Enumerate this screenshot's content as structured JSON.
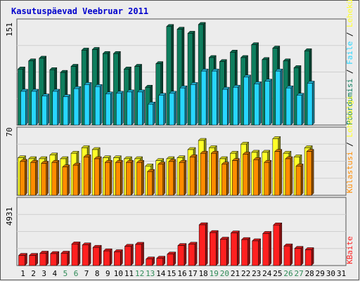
{
  "title": "Kasutuspäevad Veebruar 2011",
  "colors": {
    "background": "#ececec",
    "title": "#0000cc",
    "hits": "#0e7e5e",
    "files": "#28d6ff",
    "pages": "#ffff28",
    "visits": "#ff8c00",
    "kbytes": "#ff2020",
    "weekend_label": "#2e8b57",
    "weekday_label": "#000000"
  },
  "chart_data": [
    {
      "type": "bar",
      "panel": "top",
      "ymax_label": "151",
      "ylim": [
        0,
        151
      ],
      "right_label": {
        "a": "Pöördumisi",
        "sep1": " / ",
        "b": "Faile",
        "sep2": " / ",
        "c": "Lehekülgi"
      },
      "x": [
        1,
        2,
        3,
        4,
        5,
        6,
        7,
        8,
        9,
        10,
        11,
        12,
        13,
        14,
        15,
        16,
        17,
        18,
        19,
        20,
        21,
        22,
        23,
        24,
        25,
        26,
        27,
        28
      ],
      "series": [
        {
          "name": "Pöördumisi",
          "values": [
            83,
            95,
            99,
            82,
            78,
            87,
            111,
            112,
            106,
            106,
            83,
            87,
            56,
            91,
            146,
            142,
            136,
            149,
            100,
            94,
            108,
            100,
            119,
            97,
            114,
            95,
            85,
            110
          ]
        },
        {
          "name": "Faile",
          "values": [
            50,
            50,
            43,
            50,
            42,
            54,
            60,
            57,
            46,
            47,
            49,
            49,
            31,
            44,
            47,
            55,
            60,
            80,
            80,
            53,
            56,
            71,
            61,
            65,
            80,
            55,
            44,
            62
          ]
        }
      ]
    },
    {
      "type": "bar",
      "panel": "middle",
      "ymax_label": "70",
      "ylim": [
        0,
        70
      ],
      "right_label": {
        "a": "Lehekülgi",
        "sep1": " / ",
        "b": "Külastusi"
      },
      "x": [
        1,
        2,
        3,
        4,
        5,
        6,
        7,
        8,
        9,
        10,
        11,
        12,
        13,
        14,
        15,
        16,
        17,
        18,
        19,
        20,
        21,
        22,
        23,
        24,
        25,
        26,
        27,
        28
      ],
      "series": [
        {
          "name": "Lehekülgi",
          "values": [
            41,
            40,
            40,
            44,
            40,
            46,
            52,
            50,
            41,
            41,
            40,
            40,
            32,
            38,
            40,
            41,
            50,
            60,
            52,
            40,
            46,
            56,
            47,
            47,
            62,
            46,
            42,
            52
          ]
        },
        {
          "name": "Külastusi",
          "values": [
            37,
            36,
            35,
            36,
            31,
            33,
            42,
            40,
            36,
            36,
            36,
            36,
            26,
            34,
            37,
            36,
            42,
            46,
            46,
            34,
            38,
            45,
            39,
            36,
            48,
            40,
            32,
            48
          ]
        }
      ]
    },
    {
      "type": "bar",
      "panel": "bottom",
      "ymax_label": "4931",
      "ylim": [
        0,
        4931
      ],
      "right_label": {
        "a": "KBaite"
      },
      "x": [
        1,
        2,
        3,
        4,
        5,
        6,
        7,
        8,
        9,
        10,
        11,
        12,
        13,
        14,
        15,
        16,
        17,
        18,
        19,
        20,
        21,
        22,
        23,
        24,
        25,
        26,
        27,
        28
      ],
      "series": [
        {
          "name": "KBaite",
          "values": [
            780,
            780,
            950,
            920,
            950,
            1660,
            1585,
            1400,
            1130,
            1060,
            1480,
            1630,
            500,
            560,
            880,
            1540,
            1640,
            3140,
            2540,
            2030,
            2510,
            2000,
            1900,
            2470,
            3130,
            1510,
            1320,
            1220
          ]
        }
      ]
    }
  ],
  "xaxis": {
    "days": [
      "1",
      "2",
      "3",
      "4",
      "5",
      "6",
      "7",
      "8",
      "9",
      "10",
      "11",
      "12",
      "13",
      "14",
      "15",
      "16",
      "17",
      "18",
      "19",
      "20",
      "21",
      "22",
      "23",
      "24",
      "25",
      "26",
      "27",
      "28",
      "29",
      "30",
      "31"
    ],
    "weekend_days": [
      5,
      6,
      12,
      13,
      19,
      20,
      26,
      27
    ]
  }
}
